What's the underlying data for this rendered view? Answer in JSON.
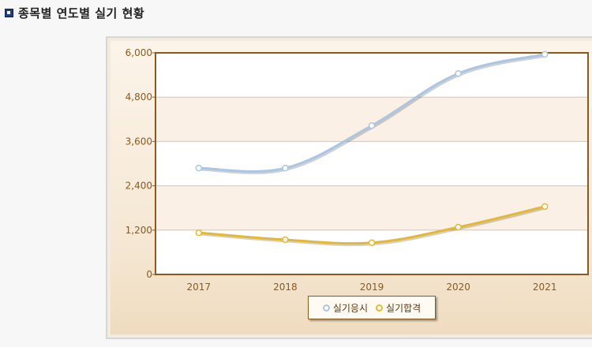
{
  "header": {
    "title": "종목별 연도별 실기 현황"
  },
  "colors": {
    "series1": "#a9c6e6",
    "series2": "#e6b830",
    "axis": "#8a5a1c",
    "tick_text": "#8a5a1c",
    "band_light": "#ffffff",
    "band_dark": "#faf0e6",
    "gridline": "#d8c7a8"
  },
  "chart_data": {
    "type": "line",
    "title": "",
    "xlabel": "",
    "ylabel": "",
    "categories": [
      "2017",
      "2018",
      "2019",
      "2020",
      "2021"
    ],
    "ylim": [
      0,
      6000
    ],
    "yticks": [
      0,
      1200,
      2400,
      3600,
      4800,
      6000
    ],
    "ytick_labels": [
      "0",
      "1,200",
      "2,400",
      "3,600",
      "4,800",
      "6,000"
    ],
    "series": [
      {
        "name": "실기응시",
        "values": [
          2880,
          2880,
          4030,
          5440,
          5960
        ]
      },
      {
        "name": "실기합격",
        "values": [
          1130,
          940,
          860,
          1280,
          1840
        ]
      }
    ],
    "legend_position": "bottom-center",
    "grid": true
  }
}
